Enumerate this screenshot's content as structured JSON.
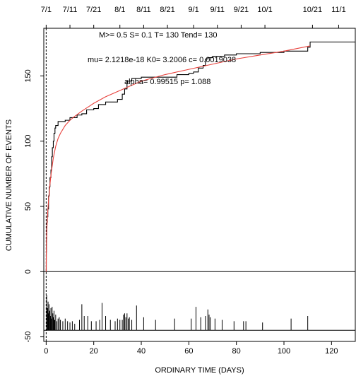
{
  "chart_data": {
    "type": "line",
    "title": "",
    "xlabel": "ORDINARY TIME (DAYS)",
    "ylabel": "CUMULATIVE NUMBER OF EVENTS",
    "xlim": [
      -1,
      130
    ],
    "ylim": [
      -50,
      180
    ],
    "x_ticks": [
      0,
      20,
      40,
      60,
      80,
      100,
      120
    ],
    "y_ticks": [
      -50,
      0,
      50,
      100,
      150
    ],
    "top_ticks": [
      {
        "label": "7/1",
        "x": 0
      },
      {
        "label": "7/11",
        "x": 10
      },
      {
        "label": "7/21",
        "x": 20
      },
      {
        "label": "8/1",
        "x": 31
      },
      {
        "label": "8/11",
        "x": 41
      },
      {
        "label": "8/21",
        "x": 51
      },
      {
        "label": "9/1",
        "x": 62
      },
      {
        "label": "9/11",
        "x": 72
      },
      {
        "label": "9/21",
        "x": 82
      },
      {
        "label": "10/1",
        "x": 92
      },
      {
        "label": "10/21",
        "x": 112
      },
      {
        "label": "11/1",
        "x": 123
      }
    ],
    "annotations": [
      "M>= 0.5  S= 0.1  T= 130  Tend= 130",
      "mu= 2.1218e-18 K0= 3.2006 c= 0.0019038",
      "alpha= 0.99515 p= 1.088"
    ],
    "series": [
      {
        "kind": "step",
        "color": "#000000",
        "x": [
          0,
          0.05,
          0.1,
          0.2,
          0.3,
          0.5,
          0.7,
          1.0,
          1.3,
          1.6,
          2.0,
          2.3,
          2.6,
          3.0,
          3.3,
          3.7,
          4.0,
          5.0,
          6.0,
          8.0,
          10.0,
          13.0,
          15.0,
          17.0,
          20.0,
          22.0,
          25.0,
          28.0,
          30.0,
          32.0,
          33.0,
          34.0,
          36.0,
          40.0,
          45.0,
          50.0,
          55.0,
          60.0,
          62.0,
          64.0,
          66.0,
          67.0,
          68.0,
          70.0,
          75.0,
          80.0,
          90.0,
          100.0,
          110.0,
          111.0,
          130.0
        ],
        "y": [
          0,
          15,
          25,
          33,
          38,
          42,
          48,
          58,
          65,
          72,
          78,
          88,
          95,
          100,
          106,
          110,
          112,
          115,
          115,
          116,
          118,
          120,
          121,
          124,
          125,
          128,
          130,
          130,
          132,
          136,
          140,
          146,
          148,
          149,
          149,
          149,
          151,
          152,
          153,
          156,
          158,
          163,
          164,
          165,
          166,
          167,
          168,
          169,
          172,
          176,
          176
        ]
      },
      {
        "kind": "line",
        "color": "#e8413c",
        "x": [
          0,
          0.05,
          0.1,
          0.2,
          0.3,
          0.5,
          0.7,
          1.0,
          1.5,
          2.0,
          3.0,
          4.0,
          5.0,
          6.0,
          8.0,
          10.0,
          12.0,
          15.0,
          20.0,
          25.0,
          30.0,
          35.0,
          40.0,
          50.0,
          60.0,
          70.0,
          80.0,
          90.0,
          100.0,
          111.0
        ],
        "y": [
          0,
          10,
          18,
          27,
          33,
          41,
          47,
          55,
          65,
          74,
          87,
          96,
          102,
          106,
          112,
          116,
          119,
          123,
          129,
          134,
          138,
          142,
          146,
          151,
          155,
          159,
          163,
          166,
          169,
          173
        ]
      }
    ],
    "magnitude_bars": {
      "baseline": -45,
      "x": [
        0.2,
        0.5,
        0.8,
        1.0,
        1.2,
        1.5,
        1.8,
        2.0,
        2.2,
        2.5,
        2.8,
        3.0,
        3.3,
        3.6,
        4.0,
        4.5,
        5.0,
        5.5,
        6.0,
        7.0,
        8.0,
        9.0,
        10.0,
        11.0,
        12.0,
        14.0,
        15.0,
        16.0,
        17.5,
        19.0,
        21.0,
        22.5,
        23.5,
        25.0,
        27.0,
        29.0,
        30.0,
        31.0,
        32.0,
        32.5,
        33.0,
        33.5,
        34.0,
        34.5,
        35.0,
        36.0,
        38.0,
        41.0,
        46.0,
        54.0,
        61.0,
        63.0,
        65.0,
        67.0,
        68.0,
        68.5,
        69.0,
        71.0,
        74.0,
        79.0,
        83.0,
        84.0,
        91.0,
        103.0,
        110.0
      ],
      "values": [
        -18,
        -28,
        -23,
        -32,
        -25,
        -30,
        -34,
        -28,
        -36,
        -27,
        -32,
        -35,
        -30,
        -37,
        -33,
        -38,
        -36,
        -35,
        -37,
        -38,
        -36,
        -38,
        -39,
        -38,
        -40,
        -37,
        -25,
        -34,
        -34,
        -38,
        -38,
        -37,
        -24,
        -34,
        -37,
        -38,
        -36,
        -37,
        -37,
        -33,
        -32,
        -35,
        -32,
        -36,
        -35,
        -37,
        -26,
        -35,
        -37,
        -36,
        -36,
        -27,
        -35,
        -34,
        -29,
        -33,
        -35,
        -36,
        -37,
        -38,
        -38,
        -38,
        -39,
        -36,
        -34
      ]
    }
  }
}
